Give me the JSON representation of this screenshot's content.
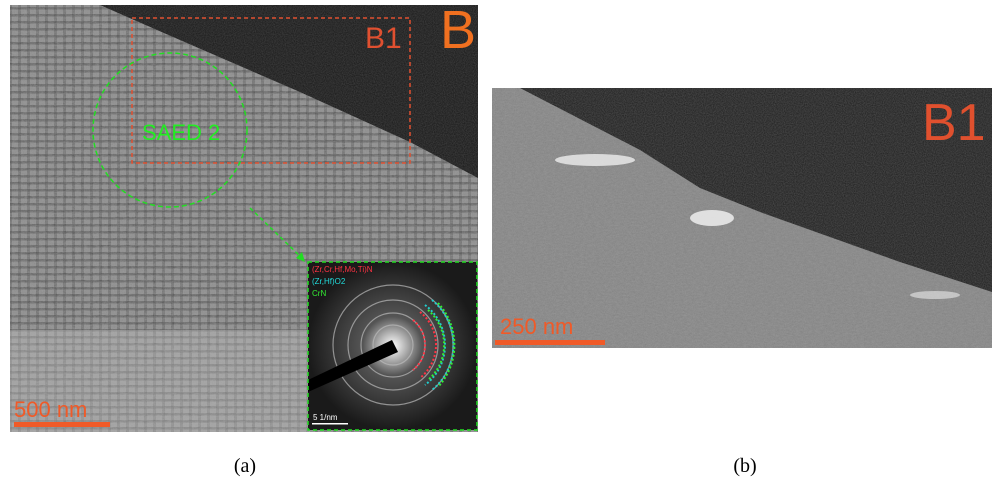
{
  "panel_a": {
    "label": "B",
    "region_label": "B1",
    "saed_label": "SAED 2",
    "scale_bar": "500 nm",
    "inset": {
      "phases": [
        "(Zr,Cr,Hf,Mo,Ti)N",
        "(Zr,Hf)O2",
        "CrN"
      ],
      "scale_bar": "5 1/nm"
    },
    "caption": "(a)"
  },
  "panel_b": {
    "region_label": "B1",
    "scale_bar": "250 nm",
    "caption": "(b)"
  }
}
